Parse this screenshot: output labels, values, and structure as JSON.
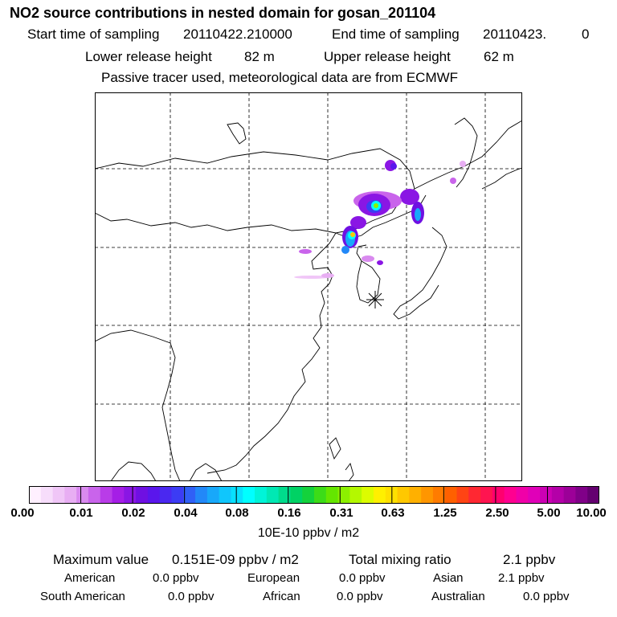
{
  "header": {
    "title": "NO2 source contributions in nested domain for gosan_201104",
    "start_label": "Start time of sampling",
    "start_value": "20110422.210000",
    "end_label": "End time of sampling",
    "end_value": "20110423.",
    "end_suffix": "0",
    "lower_label": "Lower release height",
    "lower_value": "82 m",
    "upper_label": "Upper release height",
    "upper_value": "62 m",
    "note": "Passive tracer used, meteorological data are from ECMWF"
  },
  "colorbar": {
    "ticks": [
      "0.00",
      "0.01",
      "0.02",
      "0.04",
      "0.08",
      "0.16",
      "0.31",
      "0.63",
      "1.25",
      "2.50",
      "5.00",
      "10.00"
    ],
    "unit": "10E-10 ppbv / m2",
    "colors": [
      "#fff0ff",
      "#f7ddfb",
      "#f0c6f7",
      "#e8aef3",
      "#d98aef",
      "#c964eb",
      "#b93ce8",
      "#a51ee6",
      "#8a16e4",
      "#6f10e2",
      "#5a16ec",
      "#4a28f0",
      "#3c3cf4",
      "#3060f6",
      "#2288f8",
      "#18a8fa",
      "#10c6fc",
      "#08e0fe",
      "#00ffff",
      "#00f4d8",
      "#00e8b4",
      "#00dc8c",
      "#00d264",
      "#14d23c",
      "#3cdc18",
      "#64e600",
      "#8cf000",
      "#b4f800",
      "#dcfc00",
      "#fff000",
      "#ffe000",
      "#ffc800",
      "#ffb000",
      "#ff9600",
      "#ff7c00",
      "#ff6000",
      "#ff4414",
      "#ff2832",
      "#ff1450",
      "#ff006e",
      "#ff0090",
      "#f000a8",
      "#e000b8",
      "#cc00b4",
      "#b400a8",
      "#9c0098",
      "#800088",
      "#640070"
    ]
  },
  "stats": {
    "max_label": "Maximum value",
    "max_value": "0.151E-09 ppbv / m2",
    "total_label": "Total mixing ratio",
    "total_value": "2.1 ppbv",
    "regions": [
      {
        "name": "American",
        "value": "0.0 ppbv"
      },
      {
        "name": "European",
        "value": "0.0 ppbv"
      },
      {
        "name": "Asian",
        "value": "2.1 ppbv"
      },
      {
        "name": "South American",
        "value": "0.0 ppbv"
      },
      {
        "name": "African",
        "value": "0.0 ppbv"
      },
      {
        "name": "Australian",
        "value": "0.0 ppbv"
      }
    ]
  }
}
